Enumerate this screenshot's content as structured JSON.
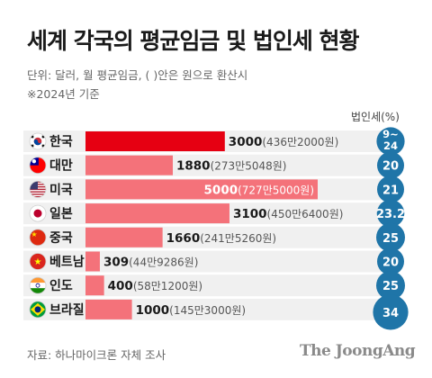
{
  "header": {
    "title": "세계 각국의 평균임금 및 법인세 현황",
    "subtitle1": "단위: 달러, 월 평균임금, ( )안은 원으로 환산시",
    "subtitle2": "※2024년 기준"
  },
  "footer": {
    "source": "자료: 하나마이크론 자체 조사",
    "brand": "The JoongAng"
  },
  "chart_data": {
    "type": "bar",
    "orientation": "horizontal",
    "unit_label": "단위: 달러, 월 평균임금",
    "categories": [
      "한국",
      "대만",
      "미국",
      "일본",
      "중국",
      "베트남",
      "인도",
      "브라질"
    ],
    "flags": [
      "korea-flag-icon",
      "taiwan-flag-icon",
      "usa-flag-icon",
      "japan-flag-icon",
      "china-flag-icon",
      "vietnam-flag-icon",
      "india-flag-icon",
      "brazil-flag-icon"
    ],
    "values": [
      3000,
      1880,
      5000,
      3100,
      1660,
      309,
      400,
      1000
    ],
    "value_labels": [
      "3000",
      "1880",
      "5000",
      "3100",
      "1660",
      "309",
      "400",
      "1000"
    ],
    "won_labels": [
      "(436만2000원)",
      "(273만5048원)",
      "(727만5000원)",
      "(450만6400원)",
      "(241만5260원)",
      "(44만9286원)",
      "(58만1200원)",
      "(145만3000원)"
    ],
    "xlim": [
      0,
      5000
    ],
    "highlight_index": 0,
    "colors": {
      "highlight_bar": "#e60012",
      "bar": "#f4727a",
      "circle": "#1f75a8",
      "circle_text": "#ffffff",
      "row_bg": "#f0f0f0",
      "value_text": "#1a1a1a",
      "won_text": "#555555"
    },
    "secondary_series": {
      "name": "법인세(%)",
      "labels": [
        "9~24",
        "20",
        "21",
        "23.2",
        "25",
        "20",
        "25",
        "34"
      ],
      "values": [
        24,
        20,
        21,
        23.2,
        25,
        20,
        25,
        34
      ]
    }
  }
}
